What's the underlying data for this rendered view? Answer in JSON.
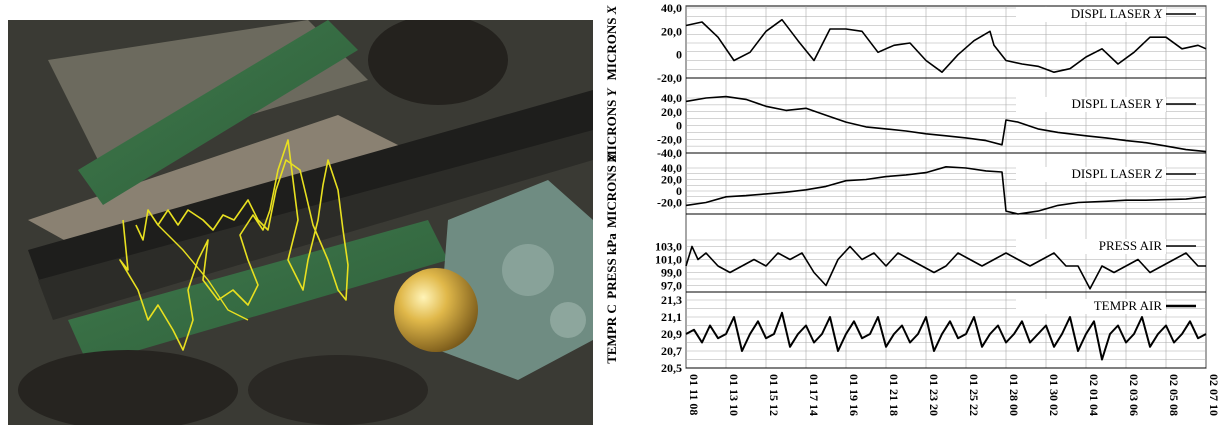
{
  "photo": {
    "overlay_color": "#e8e020",
    "description_icons": [
      "aerial-photo",
      "dome-icon",
      "trajectory-overlay"
    ]
  },
  "chart_data": {
    "type": "line",
    "x_tick_labels": [
      "01 11 08",
      "01 13 10",
      "01 15 12",
      "01 17 14",
      "01 19 16",
      "01 21 18",
      "01 23 20",
      "01 25 22",
      "01 28 00",
      "01 30 02",
      "02 01 04",
      "02 03 06",
      "02 05 08",
      "02 07 10"
    ],
    "x_range": [
      0,
      13
    ],
    "grid": true,
    "legend_position": "inside-right",
    "panels": [
      {
        "ylabel_prefix": "MICRONS ",
        "ylabel_axis": "X",
        "legend_prefix": "DISPL LASER ",
        "legend_axis": "X",
        "ylim": [
          -20,
          40
        ],
        "y_ticks": [
          "40,0",
          "20,0",
          "0",
          "-20,0"
        ],
        "y_tick_values": [
          40,
          20,
          0,
          -20
        ],
        "x": [
          0,
          0.4,
          0.8,
          1.2,
          1.6,
          2.0,
          2.4,
          2.8,
          3.2,
          3.6,
          4.0,
          4.4,
          4.8,
          5.2,
          5.6,
          6.0,
          6.4,
          6.8,
          7.2,
          7.6,
          7.7,
          8.0,
          8.4,
          8.8,
          9.2,
          9.6,
          10.0,
          10.4,
          10.8,
          11.2,
          11.6,
          12.0,
          12.4,
          12.8,
          13.0
        ],
        "y": [
          25,
          28,
          15,
          -5,
          2,
          20,
          30,
          12,
          -5,
          22,
          22,
          20,
          2,
          8,
          10,
          -5,
          -15,
          0,
          12,
          20,
          8,
          -5,
          -8,
          -10,
          -15,
          -12,
          -2,
          5,
          -8,
          2,
          15,
          15,
          5,
          8,
          5
        ]
      },
      {
        "ylabel_prefix": "MICRONS ",
        "ylabel_axis": "Y",
        "legend_prefix": "DISPL LASER ",
        "legend_axis": "Y",
        "ylim": [
          -40,
          40
        ],
        "y_ticks": [
          "40,0",
          "20,0",
          "0",
          "-20,0",
          "-40,0"
        ],
        "y_tick_values": [
          40,
          20,
          0,
          -20,
          -40
        ],
        "x": [
          0,
          0.5,
          1.0,
          1.5,
          2.0,
          2.5,
          3.0,
          3.5,
          4.0,
          4.5,
          5.0,
          5.5,
          6.0,
          6.5,
          7.0,
          7.5,
          7.9,
          8.0,
          8.3,
          8.8,
          9.3,
          10.0,
          10.5,
          11.0,
          11.5,
          12.0,
          12.5,
          13.0
        ],
        "y": [
          35,
          40,
          42,
          38,
          28,
          22,
          25,
          15,
          5,
          -2,
          -5,
          -8,
          -12,
          -15,
          -18,
          -22,
          -28,
          8,
          5,
          -5,
          -10,
          -15,
          -18,
          -22,
          -25,
          -30,
          -35,
          -38
        ]
      },
      {
        "ylabel_prefix": "MICRONS ",
        "ylabel_axis": "Z",
        "legend_prefix": "DISPL LASER ",
        "legend_axis": "Z",
        "ylim": [
          -40,
          40
        ],
        "y_ticks": [
          "40,0",
          "20,0",
          "0",
          "-20,0"
        ],
        "y_tick_values": [
          40,
          20,
          0,
          -20
        ],
        "x": [
          0,
          0.5,
          1.0,
          1.5,
          2.0,
          2.5,
          3.0,
          3.5,
          4.0,
          4.5,
          5.0,
          5.5,
          6.0,
          6.5,
          7.0,
          7.5,
          7.9,
          8.0,
          8.3,
          8.8,
          9.3,
          9.8,
          10.5,
          11.0,
          11.5,
          12.0,
          12.5,
          13.0
        ],
        "y": [
          -25,
          -20,
          -10,
          -8,
          -5,
          -2,
          2,
          8,
          18,
          20,
          25,
          28,
          32,
          42,
          40,
          35,
          33,
          -35,
          -40,
          -35,
          -25,
          -20,
          -18,
          -16,
          -16,
          -15,
          -14,
          -10
        ]
      },
      {
        "ylabel_prefix": "PRESS kPa",
        "ylabel_axis": "",
        "legend_prefix": "PRESS AIR",
        "legend_axis": "",
        "ylim": [
          96,
          104
        ],
        "y_ticks": [
          "103,0",
          "101,0",
          "99,0",
          "97,0"
        ],
        "y_tick_values": [
          103,
          101,
          99,
          97
        ],
        "x": [
          0,
          0.15,
          0.3,
          0.5,
          0.8,
          1.1,
          1.4,
          1.7,
          2.0,
          2.3,
          2.6,
          2.9,
          3.2,
          3.5,
          3.8,
          4.1,
          4.4,
          4.7,
          5.0,
          5.3,
          5.6,
          5.9,
          6.2,
          6.5,
          6.8,
          7.1,
          7.4,
          7.7,
          8.0,
          8.3,
          8.6,
          8.9,
          9.2,
          9.5,
          9.8,
          10.1,
          10.4,
          10.7,
          11.0,
          11.3,
          11.6,
          11.9,
          12.2,
          12.5,
          12.8,
          13.0
        ],
        "y": [
          100,
          103,
          101,
          102,
          100,
          99,
          100,
          101,
          100,
          102,
          101,
          102,
          99,
          97,
          101,
          103,
          101,
          102,
          100,
          102,
          101,
          100,
          99,
          100,
          102,
          101,
          100,
          101,
          102,
          101,
          100,
          101,
          102,
          100,
          100,
          96.5,
          100,
          99,
          100,
          101,
          99,
          100,
          101,
          102,
          100,
          100
        ]
      },
      {
        "ylabel_prefix": "TEMPR C",
        "ylabel_axis": "",
        "legend_prefix": "TEMPR AIR",
        "legend_axis": "",
        "ylim": [
          20.5,
          21.3
        ],
        "y_ticks": [
          "21,3",
          "21,1",
          "20,9",
          "20,7",
          "20,5"
        ],
        "y_tick_values": [
          21.3,
          21.1,
          20.9,
          20.7,
          20.5
        ],
        "x": [
          0,
          0.2,
          0.4,
          0.6,
          0.8,
          1.0,
          1.2,
          1.4,
          1.6,
          1.8,
          2.0,
          2.2,
          2.4,
          2.6,
          2.8,
          3.0,
          3.2,
          3.4,
          3.6,
          3.8,
          4.0,
          4.2,
          4.4,
          4.6,
          4.8,
          5.0,
          5.2,
          5.4,
          5.6,
          5.8,
          6.0,
          6.2,
          6.4,
          6.6,
          6.8,
          7.0,
          7.2,
          7.4,
          7.6,
          7.8,
          8.0,
          8.2,
          8.4,
          8.6,
          8.8,
          9.0,
          9.2,
          9.4,
          9.6,
          9.8,
          10.0,
          10.2,
          10.4,
          10.6,
          10.8,
          11.0,
          11.2,
          11.4,
          11.6,
          11.8,
          12.0,
          12.2,
          12.4,
          12.6,
          12.8,
          13.0
        ],
        "y": [
          20.9,
          20.95,
          20.8,
          21.0,
          20.85,
          20.9,
          21.1,
          20.7,
          20.9,
          21.05,
          20.85,
          20.9,
          21.15,
          20.75,
          20.9,
          21.0,
          20.8,
          20.9,
          21.1,
          20.7,
          20.9,
          21.05,
          20.85,
          20.9,
          21.1,
          20.75,
          20.9,
          21.0,
          20.8,
          20.9,
          21.1,
          20.7,
          20.9,
          21.05,
          20.85,
          20.9,
          21.1,
          20.75,
          20.9,
          21.0,
          20.8,
          20.9,
          21.05,
          20.8,
          20.9,
          21.0,
          20.75,
          20.9,
          21.1,
          20.7,
          20.9,
          21.05,
          20.6,
          20.9,
          21.0,
          20.8,
          20.9,
          21.1,
          20.75,
          20.9,
          21.0,
          20.8,
          20.9,
          21.05,
          20.85,
          20.9
        ]
      }
    ]
  }
}
